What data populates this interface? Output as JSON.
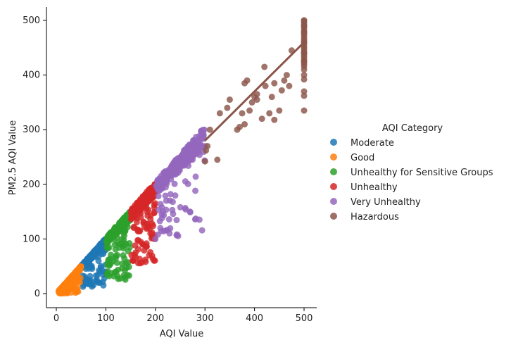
{
  "chart_data": {
    "type": "scatter",
    "xlabel": "AQI Value",
    "ylabel": "PM2.5 AQI Value",
    "xlim": [
      -20,
      525
    ],
    "ylim": [
      -20,
      525
    ],
    "xticks": [
      0,
      100,
      200,
      300,
      400,
      500
    ],
    "yticks": [
      0,
      100,
      200,
      300,
      400,
      500
    ],
    "grid": false,
    "legend": {
      "title": "AQI Category",
      "placement": "right"
    },
    "series": [
      {
        "name": "Moderate",
        "color": "#1f77b4",
        "x_range": [
          51,
          100
        ],
        "y_range": [
          12,
          100
        ],
        "points": [
          [
            95,
            15
          ],
          [
            88,
            20
          ],
          [
            100,
            40
          ],
          [
            93,
            42
          ],
          [
            72,
            13
          ],
          [
            60,
            55
          ]
        ]
      },
      {
        "name": "Good",
        "color": "#ff7f0e",
        "x_range": [
          5,
          50
        ],
        "y_range": [
          0,
          50
        ],
        "points": [
          [
            10,
            5
          ],
          [
            20,
            15
          ],
          [
            35,
            30
          ],
          [
            48,
            48
          ],
          [
            30,
            2
          ]
        ]
      },
      {
        "name": "Unhealthy for Sensitive Groups",
        "color": "#2ca02c",
        "x_range": [
          101,
          150
        ],
        "y_range": [
          25,
          150
        ],
        "points": [
          [
            125,
            27
          ],
          [
            110,
            55
          ],
          [
            115,
            60
          ],
          [
            135,
            70
          ],
          [
            120,
            65
          ]
        ]
      },
      {
        "name": "Unhealthy",
        "color": "#d62728",
        "x_range": [
          151,
          200
        ],
        "y_range": [
          55,
          200
        ],
        "points": [
          [
            155,
            60
          ],
          [
            182,
            86
          ],
          [
            175,
            90
          ],
          [
            198,
            100
          ],
          [
            190,
            110
          ],
          [
            160,
            75
          ]
        ]
      },
      {
        "name": "Very Unhealthy",
        "color": "#9467bd",
        "x_range": [
          201,
          300
        ],
        "y_range": [
          100,
          305
        ],
        "points": [
          [
            200,
            100
          ],
          [
            205,
            108
          ],
          [
            222,
            170
          ],
          [
            235,
            168
          ],
          [
            215,
            150
          ],
          [
            265,
            240
          ],
          [
            275,
            245
          ],
          [
            210,
            120
          ]
        ]
      },
      {
        "name": "Hazardous",
        "color": "#8c564b",
        "x_range": [
          301,
          500
        ],
        "y_range": [
          240,
          500
        ],
        "points": [
          [
            300,
            242
          ],
          [
            302,
            262
          ],
          [
            305,
            270
          ],
          [
            325,
            245
          ],
          [
            310,
            300
          ],
          [
            330,
            330
          ],
          [
            345,
            340
          ],
          [
            350,
            355
          ],
          [
            365,
            300
          ],
          [
            370,
            305
          ],
          [
            375,
            330
          ],
          [
            380,
            385
          ],
          [
            385,
            390
          ],
          [
            395,
            350
          ],
          [
            400,
            360
          ],
          [
            405,
            355
          ],
          [
            415,
            320
          ],
          [
            420,
            415
          ],
          [
            422,
            380
          ],
          [
            430,
            330
          ],
          [
            435,
            360
          ],
          [
            440,
            385
          ],
          [
            450,
            335
          ],
          [
            455,
            372
          ],
          [
            460,
            390
          ],
          [
            465,
            400
          ],
          [
            470,
            380
          ],
          [
            475,
            445
          ],
          [
            380,
            310
          ],
          [
            390,
            335
          ],
          [
            405,
            365
          ],
          [
            440,
            318
          ]
        ],
        "outliers_at_x500": [
          335,
          362,
          370,
          392,
          400,
          410,
          425,
          440,
          460,
          478,
          490,
          500
        ]
      }
    ],
    "regression_lines": [
      {
        "series": "Hazardous",
        "from": [
          300,
          280
        ],
        "to": [
          500,
          460
        ]
      }
    ]
  }
}
